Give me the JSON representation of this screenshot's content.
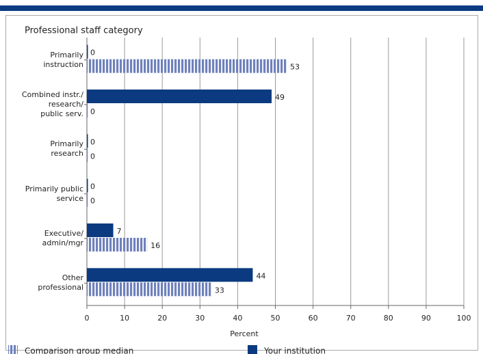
{
  "chart_data": {
    "type": "hbar",
    "title": "Professional staff category",
    "categories": [
      "Primarily\ninstruction",
      "Combined instr./\nresearch/\npublic serv.",
      "Primarily\nresearch",
      "Primarily public\nservice",
      "Executive/\nadmin/mgr",
      "Other\nprofessional"
    ],
    "series": [
      {
        "name": "Your institution",
        "color": "#0b3a80",
        "values": [
          0,
          49,
          0,
          0,
          7,
          44
        ]
      },
      {
        "name": "Comparison group median",
        "color": "#6f81bb",
        "striped": true,
        "values": [
          53,
          0,
          0,
          0,
          16,
          33
        ]
      }
    ],
    "xlabel": "Percent",
    "xlim": [
      0,
      100
    ],
    "xticks": [
      0,
      10,
      20,
      30,
      40,
      50,
      60,
      70,
      80,
      90,
      100
    ],
    "grid": true,
    "legend": "bottom"
  }
}
